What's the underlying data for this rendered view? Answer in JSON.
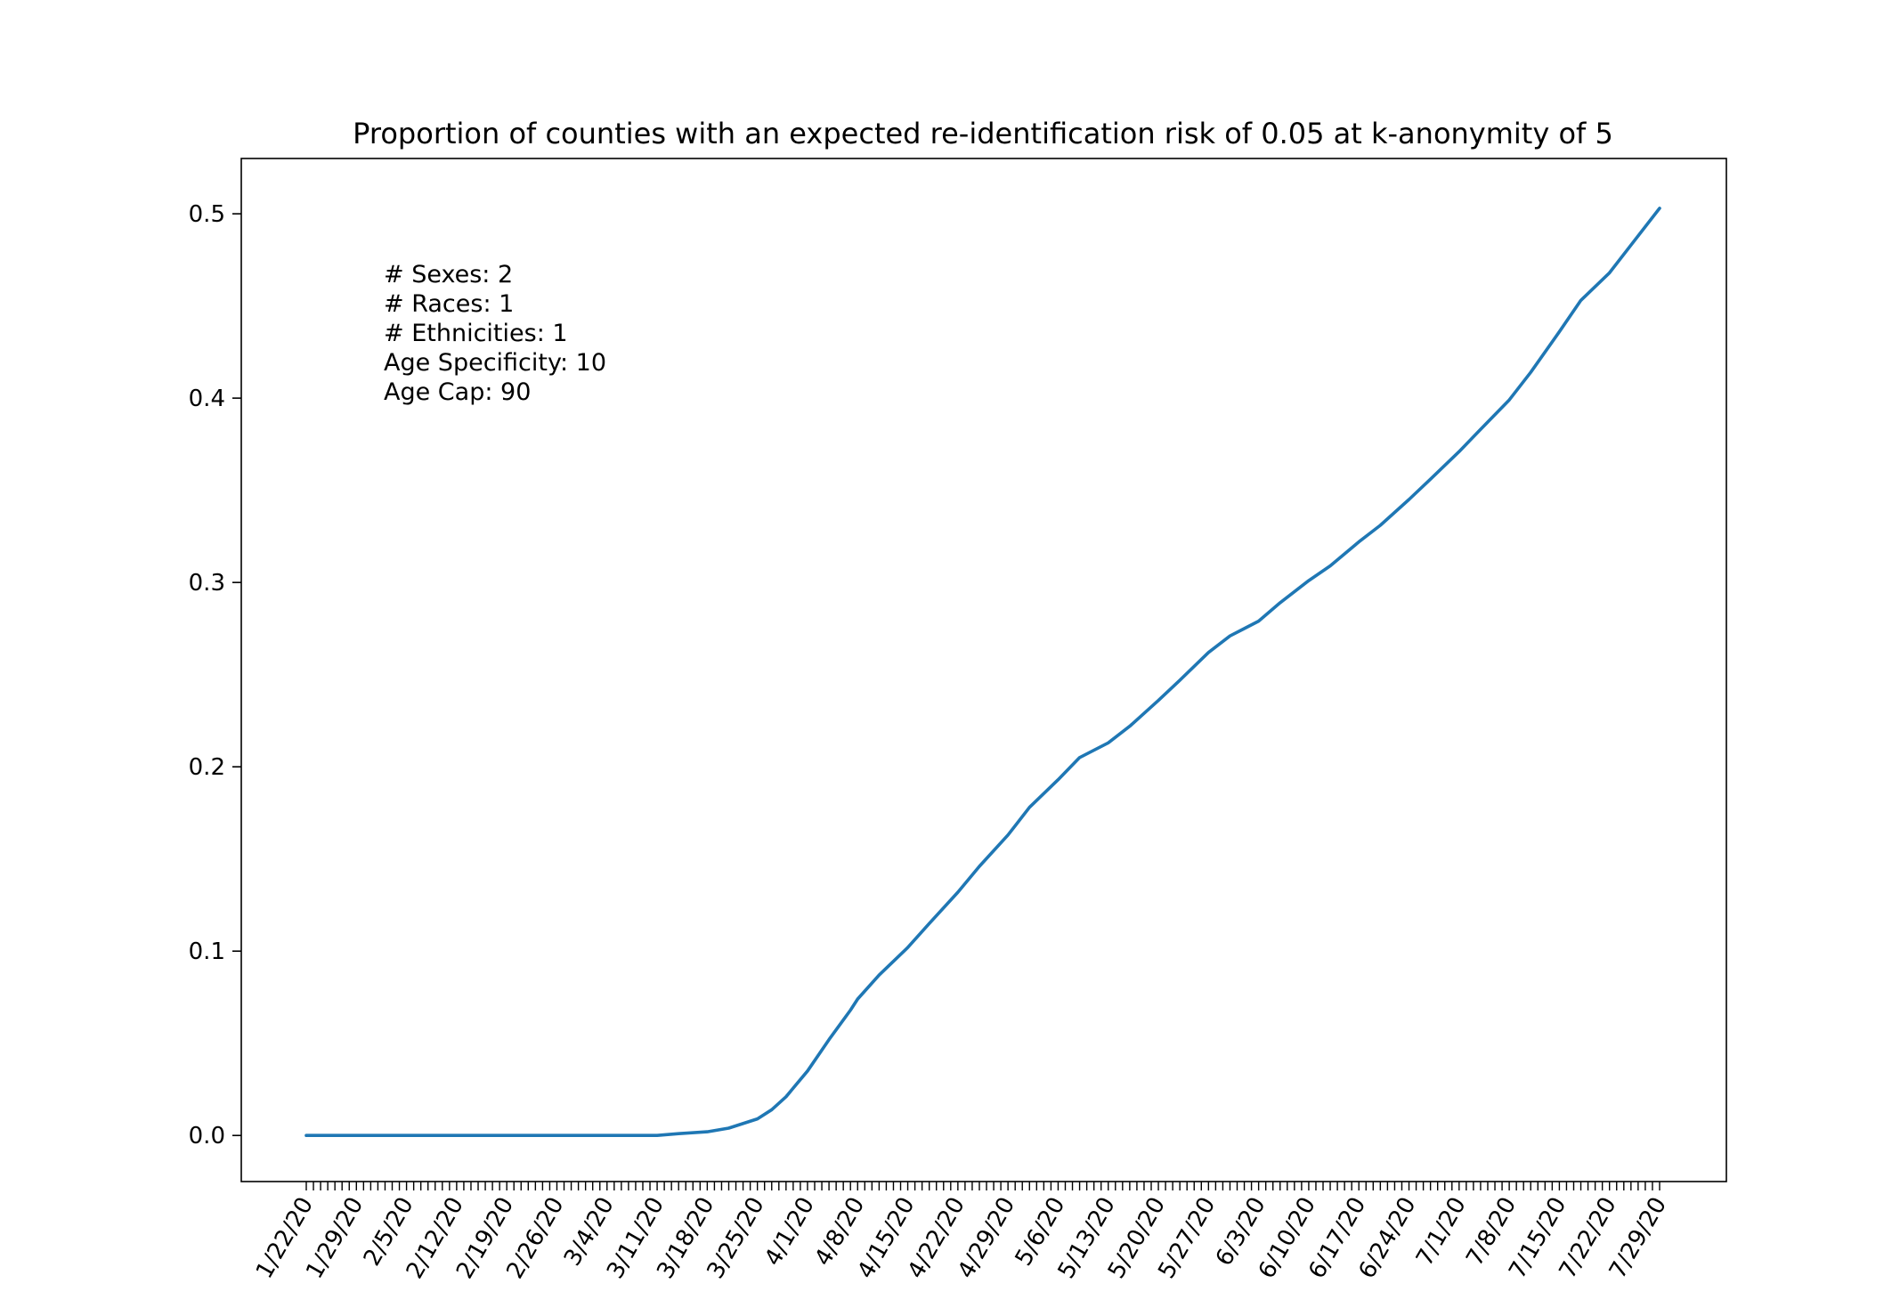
{
  "chart_data": {
    "type": "line",
    "title": "Proportion of counties with an expected re-identification risk of 0.05 at k-anonymity of 5",
    "xlabel": "",
    "ylabel": "",
    "x_start": "1/22/20",
    "x_end": "7/29/20",
    "x_tick_labels": [
      "1/22/20",
      "1/29/20",
      "2/5/20",
      "2/12/20",
      "2/19/20",
      "2/26/20",
      "3/4/20",
      "3/11/20",
      "3/18/20",
      "3/25/20",
      "4/1/20",
      "4/8/20",
      "4/15/20",
      "4/22/20",
      "4/29/20",
      "5/6/20",
      "5/13/20",
      "5/20/20",
      "5/27/20",
      "6/3/20",
      "6/10/20",
      "6/17/20",
      "6/24/20",
      "7/1/20",
      "7/8/20",
      "7/15/20",
      "7/22/20",
      "7/29/20"
    ],
    "y_ticks": [
      0.0,
      0.1,
      0.2,
      0.3,
      0.4,
      0.5
    ],
    "y_tick_labels": [
      "0.0",
      "0.1",
      "0.2",
      "0.3",
      "0.4",
      "0.5"
    ],
    "ylim": [
      -0.025,
      0.53
    ],
    "grid": false,
    "series": [
      {
        "color": "#1f77b4",
        "points": [
          [
            "1/22/20",
            0
          ],
          [
            "1/29/20",
            0
          ],
          [
            "2/5/20",
            0
          ],
          [
            "2/12/20",
            0
          ],
          [
            "2/19/20",
            0
          ],
          [
            "2/26/20",
            0
          ],
          [
            "3/4/20",
            0
          ],
          [
            "3/11/20",
            0
          ],
          [
            "3/14/20",
            0.001
          ],
          [
            "3/18/20",
            0.002
          ],
          [
            "3/21/20",
            0.004
          ],
          [
            "3/25/20",
            0.009
          ],
          [
            "3/27/20",
            0.014
          ],
          [
            "3/29/20",
            0.021
          ],
          [
            "4/1/20",
            0.035
          ],
          [
            "4/4/20",
            0.052
          ],
          [
            "4/7/20",
            0.068
          ],
          [
            "4/8/20",
            0.074
          ],
          [
            "4/11/20",
            0.087
          ],
          [
            "4/15/20",
            0.102
          ],
          [
            "4/18/20",
            0.115
          ],
          [
            "4/22/20",
            0.132
          ],
          [
            "4/25/20",
            0.146
          ],
          [
            "4/29/20",
            0.163
          ],
          [
            "5/2/20",
            0.178
          ],
          [
            "5/6/20",
            0.193
          ],
          [
            "5/9/20",
            0.205
          ],
          [
            "5/13/20",
            0.213
          ],
          [
            "5/16/20",
            0.222
          ],
          [
            "5/20/20",
            0.236
          ],
          [
            "5/23/20",
            0.247
          ],
          [
            "5/27/20",
            0.262
          ],
          [
            "5/30/20",
            0.271
          ],
          [
            "6/3/20",
            0.279
          ],
          [
            "6/6/20",
            0.289
          ],
          [
            "6/10/20",
            0.301
          ],
          [
            "6/13/20",
            0.309
          ],
          [
            "6/17/20",
            0.322
          ],
          [
            "6/20/20",
            0.331
          ],
          [
            "6/24/20",
            0.345
          ],
          [
            "6/27/20",
            0.356
          ],
          [
            "7/1/20",
            0.371
          ],
          [
            "7/4/20",
            0.383
          ],
          [
            "7/8/20",
            0.399
          ],
          [
            "7/11/20",
            0.414
          ],
          [
            "7/15/20",
            0.436
          ],
          [
            "7/18/20",
            0.453
          ],
          [
            "7/22/20",
            0.468
          ],
          [
            "7/25/20",
            0.483
          ],
          [
            "7/29/20",
            0.503
          ]
        ]
      }
    ],
    "annotations": [
      "# Sexes: 2",
      "# Races: 1",
      "# Ethnicities: 1",
      "Age Specificity: 10",
      "Age Cap: 90"
    ]
  }
}
